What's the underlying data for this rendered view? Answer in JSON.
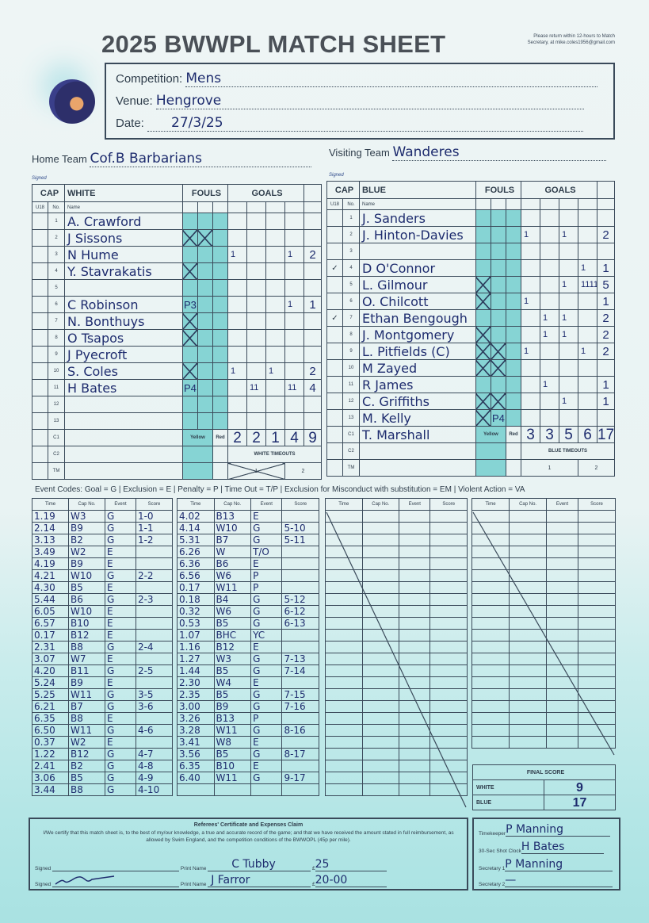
{
  "header": {
    "title": "2025 BWWPL MATCH SHEET",
    "note": "Please return within 12-hours to Match Secretary, at mike.coles1956@gmail.com",
    "competition_label": "Competition:",
    "competition": "Mens",
    "venue_label": "Venue:",
    "venue": "Hengrove",
    "date_label": "Date:",
    "date": "27/3/25",
    "home_label": "Home Team",
    "home": "Cof.B Barbarians",
    "visiting_label": "Visiting Team",
    "visiting": "Wanderes",
    "signed_label": "Signed"
  },
  "colors": {
    "ink": "#2f3d4b",
    "handwriting": "#1e2c6e",
    "foul_shade": "#86d4d4"
  },
  "white": {
    "cap": "CAP",
    "team": "WHITE",
    "fouls": "FOULS",
    "goals": "GOALS",
    "u18": "U18",
    "no": "No.",
    "name": "Name",
    "yellow": "Yellow",
    "red": "Red",
    "timeouts": "WHITE TIMEOUTS",
    "to1": "1",
    "to2": "2",
    "to1_used": true,
    "quarter_totals": [
      "2",
      "2",
      "1",
      "4"
    ],
    "total": "9",
    "players": [
      {
        "no": "1",
        "name": "A. Crawford",
        "u18": "",
        "fouls": [
          "",
          "",
          ""
        ],
        "goals": [
          "",
          "",
          "",
          ""
        ],
        "total": ""
      },
      {
        "no": "2",
        "name": "J Sissons",
        "u18": "",
        "fouls": [
          "X",
          "X",
          ""
        ],
        "goals": [
          "",
          "",
          "",
          ""
        ],
        "total": ""
      },
      {
        "no": "3",
        "name": "N Hume",
        "u18": "",
        "fouls": [
          "",
          "",
          ""
        ],
        "goals": [
          "1",
          "",
          "",
          "1"
        ],
        "total": "2"
      },
      {
        "no": "4",
        "name": "Y. Stavrakatis",
        "u18": "",
        "fouls": [
          "X",
          "",
          ""
        ],
        "goals": [
          "",
          "",
          "",
          ""
        ],
        "total": ""
      },
      {
        "no": "5",
        "name": "",
        "u18": "",
        "fouls": [
          "",
          "",
          ""
        ],
        "goals": [
          "",
          "",
          "",
          ""
        ],
        "total": ""
      },
      {
        "no": "6",
        "name": "C Robinson",
        "u18": "",
        "fouls": [
          "P3",
          "",
          ""
        ],
        "goals": [
          "",
          "",
          "",
          "1"
        ],
        "total": "1"
      },
      {
        "no": "7",
        "name": "N. Bonthuys",
        "u18": "",
        "fouls": [
          "X",
          "",
          ""
        ],
        "goals": [
          "",
          "",
          "",
          ""
        ],
        "total": ""
      },
      {
        "no": "8",
        "name": "O Tsapos",
        "u18": "",
        "fouls": [
          "X",
          "",
          ""
        ],
        "goals": [
          "",
          "",
          "",
          ""
        ],
        "total": ""
      },
      {
        "no": "9",
        "name": "J Pyecroft",
        "u18": "",
        "fouls": [
          "",
          "",
          ""
        ],
        "goals": [
          "",
          "",
          "",
          ""
        ],
        "total": ""
      },
      {
        "no": "10",
        "name": "S. Coles",
        "u18": "",
        "fouls": [
          "X",
          "",
          ""
        ],
        "goals": [
          "1",
          "",
          "1",
          ""
        ],
        "total": "2"
      },
      {
        "no": "11",
        "name": "H Bates",
        "u18": "",
        "fouls": [
          "P4",
          "",
          ""
        ],
        "goals": [
          "",
          "11",
          "",
          "11"
        ],
        "total": "4"
      },
      {
        "no": "12",
        "name": "",
        "u18": "",
        "fouls": [
          "",
          "",
          ""
        ],
        "goals": [
          "",
          "",
          "",
          ""
        ],
        "total": ""
      },
      {
        "no": "13",
        "name": "",
        "u18": "",
        "fouls": [
          "",
          "",
          ""
        ],
        "goals": [
          "",
          "",
          "",
          ""
        ],
        "total": ""
      }
    ],
    "officials": [
      {
        "no": "C1",
        "name": "",
        "card": ""
      },
      {
        "no": "C2",
        "name": ""
      },
      {
        "no": "TM",
        "name": ""
      }
    ]
  },
  "blue": {
    "cap": "CAP",
    "team": "BLUE",
    "fouls": "FOULS",
    "goals": "GOALS",
    "u18": "U18",
    "no": "No.",
    "name": "Name",
    "yellow": "Yellow",
    "red": "Red",
    "timeouts": "BLUE TIMEOUTS",
    "to1": "1",
    "to2": "2",
    "to1_used": false,
    "quarter_totals": [
      "3",
      "3",
      "5",
      "6"
    ],
    "total": "17",
    "players": [
      {
        "no": "1",
        "name": "J. Sanders",
        "u18": "",
        "fouls": [
          "",
          "",
          ""
        ],
        "goals": [
          "",
          "",
          "",
          ""
        ],
        "total": ""
      },
      {
        "no": "2",
        "name": "J. Hinton-Davies",
        "u18": "",
        "fouls": [
          "",
          "",
          ""
        ],
        "goals": [
          "1",
          "",
          "1",
          ""
        ],
        "total": "2"
      },
      {
        "no": "3",
        "name": "",
        "u18": "",
        "fouls": [
          "",
          "",
          ""
        ],
        "goals": [
          "",
          "",
          "",
          ""
        ],
        "total": ""
      },
      {
        "no": "4",
        "name": "D O'Connor",
        "u18": "✓",
        "fouls": [
          "",
          "",
          ""
        ],
        "goals": [
          "",
          "",
          "",
          "1"
        ],
        "total": "1"
      },
      {
        "no": "5",
        "name": "L. Gilmour",
        "u18": "",
        "fouls": [
          "X",
          "",
          ""
        ],
        "goals": [
          "",
          "",
          "1",
          "1111"
        ],
        "total": "5"
      },
      {
        "no": "6",
        "name": "O. Chilcott",
        "u18": "",
        "fouls": [
          "X",
          "",
          ""
        ],
        "goals": [
          "1",
          "",
          "",
          ""
        ],
        "total": "1"
      },
      {
        "no": "7",
        "name": "Ethan Bengough",
        "u18": "✓",
        "fouls": [
          "",
          "",
          ""
        ],
        "goals": [
          "",
          "1",
          "1",
          ""
        ],
        "total": "2"
      },
      {
        "no": "8",
        "name": "J. Montgomery",
        "u18": "",
        "fouls": [
          "X",
          "",
          ""
        ],
        "goals": [
          "",
          "1",
          "1",
          ""
        ],
        "total": "2"
      },
      {
        "no": "9",
        "name": "L. Pitfields (C)",
        "u18": "",
        "fouls": [
          "X",
          "X",
          ""
        ],
        "goals": [
          "1",
          "",
          "",
          "1"
        ],
        "total": "2"
      },
      {
        "no": "10",
        "name": "M Zayed",
        "u18": "",
        "fouls": [
          "X",
          "X",
          ""
        ],
        "goals": [
          "",
          "",
          "",
          ""
        ],
        "total": ""
      },
      {
        "no": "11",
        "name": "R James",
        "u18": "",
        "fouls": [
          "",
          "",
          ""
        ],
        "goals": [
          "",
          "1",
          "",
          ""
        ],
        "total": "1"
      },
      {
        "no": "12",
        "name": "C. Griffiths",
        "u18": "",
        "fouls": [
          "X",
          "X",
          ""
        ],
        "goals": [
          "",
          "",
          "1",
          ""
        ],
        "total": "1"
      },
      {
        "no": "13",
        "name": "M. Kelly",
        "u18": "",
        "fouls": [
          "X",
          "P4",
          ""
        ],
        "goals": [
          "",
          "",
          "",
          ""
        ],
        "total": ""
      }
    ],
    "officials": [
      {
        "no": "C1",
        "name": "T. Marshall",
        "card": "X"
      },
      {
        "no": "C2",
        "name": ""
      },
      {
        "no": "TM",
        "name": ""
      }
    ]
  },
  "event_codes": "Event Codes: Goal = G | Exclusion = E | Penalty = P | Time Out = T/P | Exclusion for Misconduct with substitution = EM | Violent Action = VA",
  "event_headers": [
    "Time",
    "Cap No.",
    "Event",
    "Score"
  ],
  "event_tables": [
    [
      [
        "1.19",
        "W3",
        "G",
        "1-0"
      ],
      [
        "2.14",
        "B9",
        "G",
        "1-1"
      ],
      [
        "3.13",
        "B2",
        "G",
        "1-2"
      ],
      [
        "3.49",
        "W2",
        "E",
        ""
      ],
      [
        "4.19",
        "B9",
        "E",
        ""
      ],
      [
        "4.21",
        "W10",
        "G",
        "2-2"
      ],
      [
        "4.30",
        "B5",
        "E",
        ""
      ],
      [
        "5.44",
        "B6",
        "G",
        "2-3"
      ],
      [
        "6.05",
        "W10",
        "E",
        ""
      ],
      [
        "6.57",
        "B10",
        "E",
        ""
      ],
      [
        "0.17",
        "B12",
        "E",
        ""
      ],
      [
        "2.31",
        "B8",
        "G",
        "2-4"
      ],
      [
        "3.07",
        "W7",
        "E",
        ""
      ],
      [
        "4.20",
        "B11",
        "G",
        "2-5"
      ],
      [
        "5.24",
        "B9",
        "E",
        ""
      ],
      [
        "5.25",
        "W11",
        "G",
        "3-5"
      ],
      [
        "6.21",
        "B7",
        "G",
        "3-6"
      ],
      [
        "6.35",
        "B8",
        "E",
        ""
      ],
      [
        "6.50",
        "W11",
        "G",
        "4-6"
      ],
      [
        "0.37",
        "W2",
        "E",
        ""
      ],
      [
        "1.22",
        "B12",
        "G",
        "4-7"
      ],
      [
        "2.41",
        "B2",
        "G",
        "4-8"
      ],
      [
        "3.06",
        "B5",
        "G",
        "4-9"
      ],
      [
        "3.44",
        "B8",
        "G",
        "4-10"
      ]
    ],
    [
      [
        "4.02",
        "B13",
        "E",
        ""
      ],
      [
        "4.14",
        "W10",
        "G",
        "5-10"
      ],
      [
        "5.31",
        "B7",
        "G",
        "5-11"
      ],
      [
        "6.26",
        "W",
        "T/O",
        ""
      ],
      [
        "6.36",
        "B6",
        "E",
        ""
      ],
      [
        "6.56",
        "W6",
        "P",
        ""
      ],
      [
        "0.17",
        "W11",
        "P",
        ""
      ],
      [
        "0.18",
        "B4",
        "G",
        "5-12"
      ],
      [
        "0.32",
        "W6",
        "G",
        "6-12"
      ],
      [
        "0.53",
        "B5",
        "G",
        "6-13"
      ],
      [
        "1.07",
        "BHC",
        "YC",
        ""
      ],
      [
        "1.16",
        "B12",
        "E",
        ""
      ],
      [
        "1.27",
        "W3",
        "G",
        "7-13"
      ],
      [
        "1.44",
        "B5",
        "G",
        "7-14"
      ],
      [
        "2.30",
        "W4",
        "E",
        ""
      ],
      [
        "2.35",
        "B5",
        "G",
        "7-15"
      ],
      [
        "3.00",
        "B9",
        "G",
        "7-16"
      ],
      [
        "3.26",
        "B13",
        "P",
        ""
      ],
      [
        "3.28",
        "W11",
        "G",
        "8-16"
      ],
      [
        "3.41",
        "W8",
        "E",
        ""
      ],
      [
        "3.56",
        "B5",
        "G",
        "8-17"
      ],
      [
        "6.35",
        "B10",
        "E",
        ""
      ],
      [
        "6.40",
        "W11",
        "G",
        "9-17"
      ],
      [
        "",
        "",
        "",
        ""
      ]
    ]
  ],
  "final_score": {
    "label": "FINAL SCORE",
    "white_label": "WHITE",
    "white": "9",
    "blue_label": "BLUE",
    "blue": "17"
  },
  "referees": {
    "title": "Referees' Certificate and Expenses Claim",
    "certify": "I/We certify that this match sheet is, to the best of my/our knowledge, a true and accurate record of the game; and that we have received the amount stated in full reimbursement, as allowed by Swim England, and the competition conditions of the BWWOPL (45p per mile).",
    "signed_label": "Signed",
    "print_label": "Print Name",
    "currency": "£",
    "ref1_name": "C Tubby",
    "ref1_amount": "25",
    "ref2_name": "J Farror",
    "ref2_amount": "20-00"
  },
  "officials": {
    "timekeeper_label": "Timekeeper",
    "timekeeper": "P Manning",
    "shotclock_label": "30-Sec Shot Clock",
    "shotclock": "H Bates",
    "sec1_label": "Secretary 1",
    "sec1": "P Manning",
    "sec2_label": "Secretary 2",
    "sec2": "—"
  }
}
